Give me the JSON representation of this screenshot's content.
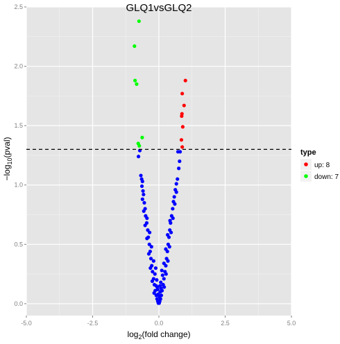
{
  "chart_data": {
    "type": "scatter",
    "title": "GLQ1vsGLQ2",
    "xlabel_main": "log",
    "xlabel_sub": "2",
    "xlabel_rest": "(fold change)",
    "ylabel_prefix": "−log",
    "ylabel_sub": "10",
    "ylabel_rest": "(pval)",
    "xlim": [
      -5.0,
      5.0
    ],
    "ylim": [
      -0.1,
      2.5
    ],
    "x_ticks": [
      -5.0,
      -2.5,
      0.0,
      2.5,
      5.0
    ],
    "x_tick_labels": [
      "-5.0",
      "-2.5",
      "0.0",
      "2.5",
      "5.0"
    ],
    "y_ticks": [
      0.0,
      0.5,
      1.0,
      1.5,
      2.0,
      2.5
    ],
    "y_tick_labels": [
      "0.0",
      "0.5",
      "1.0",
      "1.5",
      "2.0",
      "2.5"
    ],
    "threshold_y": 1.3,
    "grid": true,
    "legend": {
      "title": "type",
      "placement": "right",
      "entries": [
        {
          "label": "up: 8",
          "color": "#ff0000"
        },
        {
          "label": "down: 7",
          "color": "#00ff00"
        }
      ]
    },
    "colors": {
      "up": "#ff0000",
      "down": "#00ff00",
      "none": "#0000ff",
      "panel": "#e5e5e5",
      "grid": "#ffffff"
    },
    "series": [
      {
        "name": "up",
        "points": [
          [
            1.0,
            1.88
          ],
          [
            0.88,
            1.77
          ],
          [
            0.95,
            1.67
          ],
          [
            0.87,
            1.6
          ],
          [
            0.86,
            1.58
          ],
          [
            0.9,
            1.49
          ],
          [
            0.85,
            1.38
          ],
          [
            0.88,
            1.32
          ]
        ]
      },
      {
        "name": "down",
        "points": [
          [
            -0.75,
            2.38
          ],
          [
            -0.92,
            2.17
          ],
          [
            -0.9,
            1.88
          ],
          [
            -0.84,
            1.85
          ],
          [
            -0.63,
            1.4
          ],
          [
            -0.78,
            1.35
          ],
          [
            -0.74,
            1.33
          ]
        ]
      },
      {
        "name": "none",
        "points": [
          [
            -0.72,
            1.29
          ],
          [
            -0.77,
            1.24
          ],
          [
            0.72,
            1.28
          ],
          [
            0.8,
            1.28
          ],
          [
            0.78,
            1.2
          ],
          [
            0.75,
            1.14
          ],
          [
            -0.68,
            1.08
          ],
          [
            -0.65,
            1.05
          ],
          [
            -0.62,
            1.03
          ],
          [
            -0.64,
            0.99
          ],
          [
            -0.6,
            0.95
          ],
          [
            -0.58,
            0.92
          ],
          [
            -0.62,
            0.88
          ],
          [
            -0.55,
            0.85
          ],
          [
            -0.52,
            0.8
          ],
          [
            -0.57,
            0.78
          ],
          [
            -0.5,
            0.74
          ],
          [
            -0.46,
            0.68
          ],
          [
            -0.52,
            0.66
          ],
          [
            -0.42,
            0.62
          ],
          [
            -0.4,
            0.56
          ],
          [
            -0.45,
            0.55
          ],
          [
            -0.36,
            0.5
          ],
          [
            -0.33,
            0.44
          ],
          [
            -0.38,
            0.42
          ],
          [
            -0.3,
            0.38
          ],
          [
            -0.27,
            0.32
          ],
          [
            -0.32,
            0.3
          ],
          [
            -0.24,
            0.27
          ],
          [
            -0.2,
            0.21
          ],
          [
            -0.25,
            0.19
          ],
          [
            -0.17,
            0.16
          ],
          [
            -0.14,
            0.11
          ],
          [
            -0.18,
            0.09
          ],
          [
            -0.1,
            0.07
          ],
          [
            -0.07,
            0.04
          ],
          [
            -0.04,
            0.02
          ],
          [
            -0.02,
            0.005
          ],
          [
            0.7,
            1.05
          ],
          [
            0.66,
            1.01
          ],
          [
            0.62,
            0.96
          ],
          [
            0.66,
            0.94
          ],
          [
            0.58,
            0.9
          ],
          [
            0.55,
            0.86
          ],
          [
            0.6,
            0.84
          ],
          [
            0.52,
            0.8
          ],
          [
            0.48,
            0.74
          ],
          [
            0.53,
            0.72
          ],
          [
            0.44,
            0.68
          ],
          [
            0.41,
            0.62
          ],
          [
            0.46,
            0.6
          ],
          [
            0.38,
            0.56
          ],
          [
            0.35,
            0.5
          ],
          [
            0.4,
            0.48
          ],
          [
            0.32,
            0.44
          ],
          [
            0.29,
            0.38
          ],
          [
            0.34,
            0.36
          ],
          [
            0.26,
            0.32
          ],
          [
            0.23,
            0.27
          ],
          [
            0.27,
            0.25
          ],
          [
            0.19,
            0.21
          ],
          [
            0.16,
            0.16
          ],
          [
            0.2,
            0.14
          ],
          [
            0.12,
            0.11
          ],
          [
            0.09,
            0.07
          ],
          [
            0.06,
            0.04
          ],
          [
            0.03,
            0.02
          ],
          [
            0.01,
            0.005
          ],
          [
            -0.45,
            0.72
          ],
          [
            -0.35,
            0.6
          ],
          [
            -0.28,
            0.48
          ],
          [
            -0.2,
            0.36
          ],
          [
            -0.15,
            0.25
          ],
          [
            -0.1,
            0.15
          ],
          [
            0.42,
            0.7
          ],
          [
            0.33,
            0.58
          ],
          [
            0.26,
            0.46
          ],
          [
            0.19,
            0.34
          ],
          [
            0.14,
            0.24
          ],
          [
            0.08,
            0.13
          ],
          [
            -0.08,
            0.2
          ],
          [
            -0.05,
            0.12
          ],
          [
            0.05,
            0.1
          ],
          [
            0.07,
            0.18
          ],
          [
            -0.12,
            0.3
          ],
          [
            0.11,
            0.28
          ],
          [
            0.0,
            0.02
          ],
          [
            -0.03,
            0.08
          ],
          [
            0.02,
            0.06
          ],
          [
            -0.06,
            0.14
          ],
          [
            0.04,
            0.15
          ]
        ]
      }
    ]
  }
}
